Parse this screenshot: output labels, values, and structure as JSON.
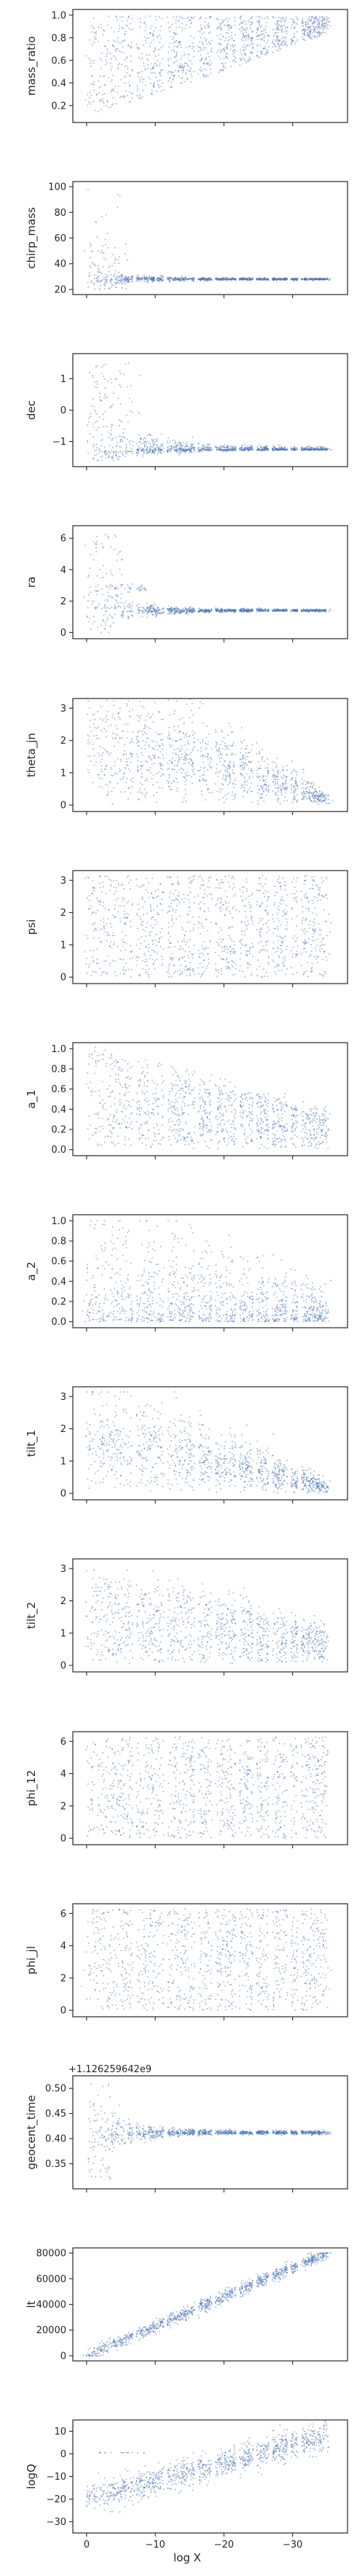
{
  "chart_data": {
    "type": "scatter",
    "xlabel": "log X",
    "x_inverted": true,
    "xlim": [
      2,
      -38
    ],
    "xticks": [
      0,
      -10,
      -20,
      -30
    ],
    "xtick_labels": [
      "0",
      "−10",
      "−20",
      "−30"
    ],
    "marker_color": "#4c72b0",
    "grid": false,
    "legend": "none",
    "panels": [
      {
        "ylabel": "mass_ratio",
        "ylim": [
          0.05,
          1.05
        ],
        "yticks": [
          0.2,
          0.4,
          0.6,
          0.8,
          1.0
        ],
        "ytick_labels": [
          "0.2",
          "0.4",
          "0.6",
          "0.8",
          "1.0"
        ],
        "offset_text": ""
      },
      {
        "ylabel": "chirp_mass",
        "ylim": [
          16,
          104
        ],
        "yticks": [
          20,
          40,
          60,
          80,
          100
        ],
        "ytick_labels": [
          "20",
          "40",
          "60",
          "80",
          "100"
        ],
        "offset_text": ""
      },
      {
        "ylabel": "dec",
        "ylim": [
          -1.8,
          1.8
        ],
        "yticks": [
          -1,
          0,
          1
        ],
        "ytick_labels": [
          "−1",
          "0",
          "1"
        ],
        "offset_text": ""
      },
      {
        "ylabel": "ra",
        "ylim": [
          -0.4,
          6.8
        ],
        "yticks": [
          0,
          2,
          4,
          6
        ],
        "ytick_labels": [
          "0",
          "2",
          "4",
          "6"
        ],
        "offset_text": ""
      },
      {
        "ylabel": "theta_jn",
        "ylim": [
          -0.2,
          3.3
        ],
        "yticks": [
          0,
          1,
          2,
          3
        ],
        "ytick_labels": [
          "0",
          "1",
          "2",
          "3"
        ],
        "offset_text": ""
      },
      {
        "ylabel": "psi",
        "ylim": [
          -0.2,
          3.3
        ],
        "yticks": [
          0,
          1,
          2,
          3
        ],
        "ytick_labels": [
          "0",
          "1",
          "2",
          "3"
        ],
        "offset_text": ""
      },
      {
        "ylabel": "a_1",
        "ylim": [
          -0.06,
          1.06
        ],
        "yticks": [
          0.0,
          0.2,
          0.4,
          0.6,
          0.8,
          1.0
        ],
        "ytick_labels": [
          "0.0",
          "0.2",
          "0.4",
          "0.6",
          "0.8",
          "1.0"
        ],
        "offset_text": ""
      },
      {
        "ylabel": "a_2",
        "ylim": [
          -0.06,
          1.06
        ],
        "yticks": [
          0.0,
          0.2,
          0.4,
          0.6,
          0.8,
          1.0
        ],
        "ytick_labels": [
          "0.0",
          "0.2",
          "0.4",
          "0.6",
          "0.8",
          "1.0"
        ],
        "offset_text": ""
      },
      {
        "ylabel": "tilt_1",
        "ylim": [
          -0.2,
          3.3
        ],
        "yticks": [
          0,
          1,
          2,
          3
        ],
        "ytick_labels": [
          "0",
          "1",
          "2",
          "3"
        ],
        "offset_text": ""
      },
      {
        "ylabel": "tilt_2",
        "ylim": [
          -0.2,
          3.3
        ],
        "yticks": [
          0,
          1,
          2,
          3
        ],
        "ytick_labels": [
          "0",
          "1",
          "2",
          "3"
        ],
        "offset_text": ""
      },
      {
        "ylabel": "phi_12",
        "ylim": [
          -0.4,
          6.6
        ],
        "yticks": [
          0,
          2,
          4,
          6
        ],
        "ytick_labels": [
          "0",
          "2",
          "4",
          "6"
        ],
        "offset_text": ""
      },
      {
        "ylabel": "phi_jl",
        "ylim": [
          -0.4,
          6.6
        ],
        "yticks": [
          0,
          2,
          4,
          6
        ],
        "ytick_labels": [
          "0",
          "2",
          "4",
          "6"
        ],
        "offset_text": ""
      },
      {
        "ylabel": "geocent_time",
        "ylim": [
          0.3,
          0.525
        ],
        "yticks": [
          0.35,
          0.4,
          0.45,
          0.5
        ],
        "ytick_labels": [
          "0.35",
          "0.40",
          "0.45",
          "0.50"
        ],
        "offset_text": "+1.126259642e9"
      },
      {
        "ylabel": "lt",
        "ylim": [
          -4000,
          84000
        ],
        "yticks": [
          0,
          20000,
          40000,
          60000,
          80000
        ],
        "ytick_labels": [
          "0",
          "20000",
          "40000",
          "60000",
          "80000"
        ],
        "offset_text": ""
      },
      {
        "ylabel": "logQ",
        "ylim": [
          -35,
          15
        ],
        "yticks": [
          -30,
          -20,
          -10,
          0,
          10
        ],
        "ytick_labels": [
          "−30",
          "−20",
          "−10",
          "0",
          "10"
        ],
        "offset_text": ""
      }
    ]
  }
}
